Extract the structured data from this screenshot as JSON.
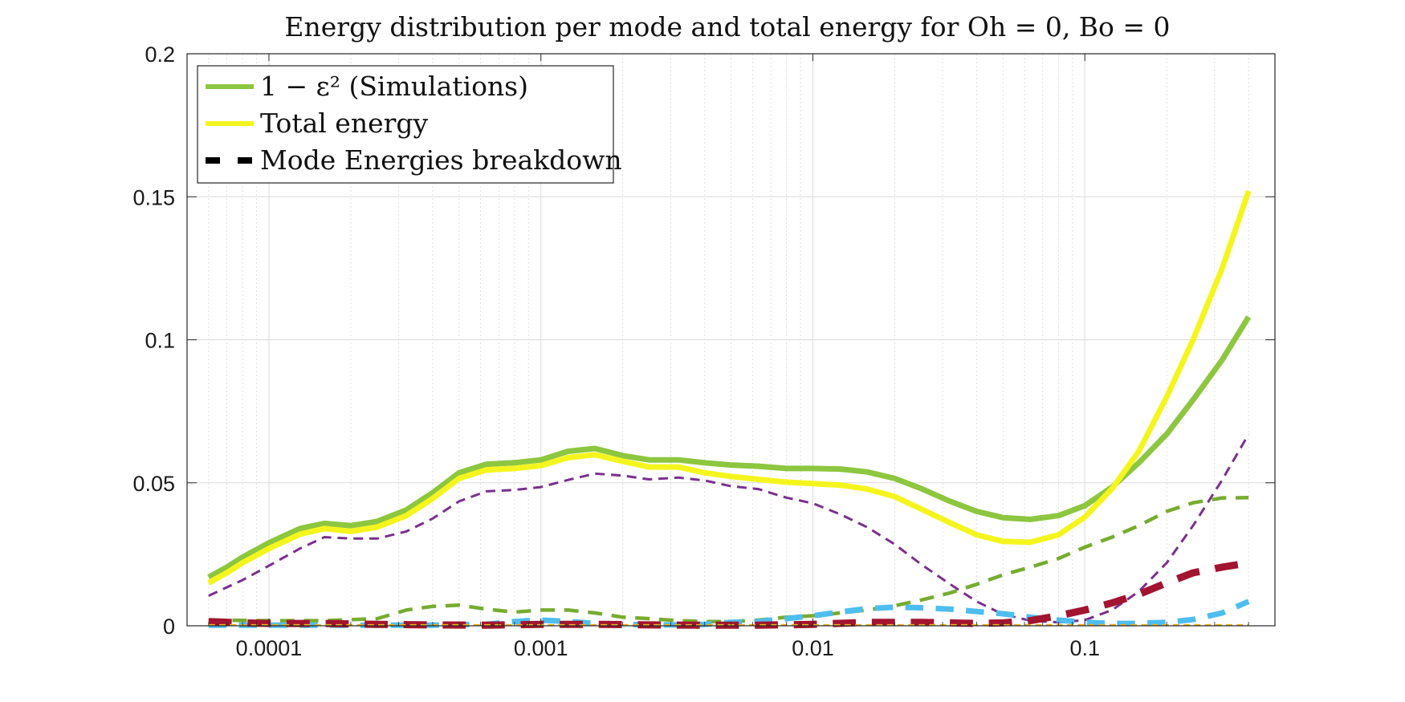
{
  "chart_data": {
    "type": "line",
    "title": "Energy distribution per mode and total energy for Oh = 0, Bo = 0",
    "xlabel": "",
    "ylabel": "",
    "x_scale": "log",
    "xlim": [
      5e-05,
      0.5
    ],
    "ylim": [
      0,
      0.2
    ],
    "grid": true,
    "legend_position": "top-left",
    "x_ticks": [
      0.0001,
      0.001,
      0.01,
      0.1
    ],
    "x_tick_labels": [
      "0.0001",
      "0.001",
      "0.01",
      "0.1"
    ],
    "y_ticks": [
      0,
      0.05,
      0.1,
      0.15,
      0.2
    ],
    "y_tick_labels": [
      "0",
      "0.05",
      "0.1",
      "0.15",
      "0.2"
    ],
    "legend": [
      {
        "label": "1 − ε² (Simulations)",
        "color": "#8dc63f",
        "style": "solid"
      },
      {
        "label": "Total energy",
        "color": "#f5f51e",
        "style": "solid"
      },
      {
        "label": "Mode Energies breakdown",
        "color": "#000000",
        "style": "dashed"
      }
    ],
    "series": [
      {
        "name": "1 − ε² (Simulations)",
        "color": "#8dc63f",
        "style": "solid",
        "width": 7,
        "points": [
          [
            6e-05,
            0.017
          ],
          [
            7e-05,
            0.0205
          ],
          [
            8e-05,
            0.024
          ],
          [
            0.0001,
            0.029
          ],
          [
            0.00013,
            0.034
          ],
          [
            0.00016,
            0.0358
          ],
          [
            0.0002,
            0.035
          ],
          [
            0.00025,
            0.0365
          ],
          [
            0.00032,
            0.0405
          ],
          [
            0.0004,
            0.0465
          ],
          [
            0.0005,
            0.0535
          ],
          [
            0.00063,
            0.0565
          ],
          [
            0.0008,
            0.057
          ],
          [
            0.001,
            0.058
          ],
          [
            0.00126,
            0.061
          ],
          [
            0.00158,
            0.062
          ],
          [
            0.002,
            0.0595
          ],
          [
            0.0025,
            0.058
          ],
          [
            0.0032,
            0.058
          ],
          [
            0.004,
            0.057
          ],
          [
            0.005,
            0.0562
          ],
          [
            0.0063,
            0.0558
          ],
          [
            0.008,
            0.055
          ],
          [
            0.01,
            0.055
          ],
          [
            0.0126,
            0.0548
          ],
          [
            0.0158,
            0.0538
          ],
          [
            0.02,
            0.0515
          ],
          [
            0.025,
            0.048
          ],
          [
            0.032,
            0.0435
          ],
          [
            0.04,
            0.04
          ],
          [
            0.05,
            0.0378
          ],
          [
            0.063,
            0.0372
          ],
          [
            0.08,
            0.0385
          ],
          [
            0.1,
            0.042
          ],
          [
            0.126,
            0.0485
          ],
          [
            0.158,
            0.057
          ],
          [
            0.2,
            0.067
          ],
          [
            0.25,
            0.079
          ],
          [
            0.32,
            0.093
          ],
          [
            0.4,
            0.108
          ]
        ]
      },
      {
        "name": "Total energy",
        "color": "#f5f51e",
        "style": "solid",
        "width": 7,
        "points": [
          [
            6e-05,
            0.015
          ],
          [
            7e-05,
            0.0185
          ],
          [
            8e-05,
            0.022
          ],
          [
            0.0001,
            0.027
          ],
          [
            0.00013,
            0.032
          ],
          [
            0.00016,
            0.034
          ],
          [
            0.0002,
            0.033
          ],
          [
            0.00025,
            0.0345
          ],
          [
            0.00032,
            0.0385
          ],
          [
            0.0004,
            0.0445
          ],
          [
            0.0005,
            0.0515
          ],
          [
            0.00063,
            0.0545
          ],
          [
            0.0008,
            0.055
          ],
          [
            0.001,
            0.056
          ],
          [
            0.00126,
            0.0588
          ],
          [
            0.00158,
            0.0598
          ],
          [
            0.002,
            0.0575
          ],
          [
            0.0025,
            0.0555
          ],
          [
            0.0032,
            0.0555
          ],
          [
            0.004,
            0.0535
          ],
          [
            0.005,
            0.0522
          ],
          [
            0.0063,
            0.0512
          ],
          [
            0.008,
            0.0502
          ],
          [
            0.01,
            0.0497
          ],
          [
            0.0126,
            0.0492
          ],
          [
            0.0158,
            0.0478
          ],
          [
            0.02,
            0.0452
          ],
          [
            0.025,
            0.0408
          ],
          [
            0.032,
            0.036
          ],
          [
            0.04,
            0.0318
          ],
          [
            0.05,
            0.0295
          ],
          [
            0.063,
            0.0292
          ],
          [
            0.08,
            0.0318
          ],
          [
            0.1,
            0.038
          ],
          [
            0.126,
            0.048
          ],
          [
            0.158,
            0.061
          ],
          [
            0.2,
            0.08
          ],
          [
            0.25,
            0.1
          ],
          [
            0.32,
            0.125
          ],
          [
            0.4,
            0.152
          ]
        ]
      },
      {
        "name": "",
        "color": "#7b2f8e",
        "style": "dashed",
        "width": 3,
        "points": [
          [
            6e-05,
            0.0105
          ],
          [
            8e-05,
            0.016
          ],
          [
            0.0001,
            0.021
          ],
          [
            0.00013,
            0.027
          ],
          [
            0.00016,
            0.031
          ],
          [
            0.0002,
            0.0305
          ],
          [
            0.00025,
            0.0305
          ],
          [
            0.00032,
            0.033
          ],
          [
            0.0004,
            0.0375
          ],
          [
            0.0005,
            0.0435
          ],
          [
            0.00063,
            0.047
          ],
          [
            0.0008,
            0.0475
          ],
          [
            0.001,
            0.0485
          ],
          [
            0.00126,
            0.051
          ],
          [
            0.00158,
            0.0532
          ],
          [
            0.002,
            0.0525
          ],
          [
            0.0025,
            0.0512
          ],
          [
            0.0032,
            0.0518
          ],
          [
            0.004,
            0.0508
          ],
          [
            0.005,
            0.0488
          ],
          [
            0.0063,
            0.0478
          ],
          [
            0.008,
            0.0448
          ],
          [
            0.01,
            0.0428
          ],
          [
            0.0126,
            0.039
          ],
          [
            0.0158,
            0.0345
          ],
          [
            0.02,
            0.0285
          ],
          [
            0.025,
            0.0215
          ],
          [
            0.032,
            0.0145
          ],
          [
            0.04,
            0.0085
          ],
          [
            0.05,
            0.004
          ],
          [
            0.063,
            0.0018
          ],
          [
            0.08,
            0.0012
          ],
          [
            0.1,
            0.002
          ],
          [
            0.126,
            0.0055
          ],
          [
            0.158,
            0.012
          ],
          [
            0.2,
            0.022
          ],
          [
            0.25,
            0.035
          ],
          [
            0.32,
            0.051
          ],
          [
            0.4,
            0.067
          ]
        ]
      },
      {
        "name": "",
        "color": "#77ac30",
        "style": "dashed",
        "width": 4.5,
        "points": [
          [
            6e-05,
            0.002
          ],
          [
            0.0001,
            0.0018
          ],
          [
            0.00016,
            0.0018
          ],
          [
            0.00025,
            0.0025
          ],
          [
            0.00032,
            0.0055
          ],
          [
            0.0004,
            0.0068
          ],
          [
            0.0005,
            0.0072
          ],
          [
            0.00063,
            0.0058
          ],
          [
            0.0008,
            0.0048
          ],
          [
            0.001,
            0.0055
          ],
          [
            0.00126,
            0.0055
          ],
          [
            0.00158,
            0.0045
          ],
          [
            0.002,
            0.003
          ],
          [
            0.0025,
            0.0025
          ],
          [
            0.0032,
            0.0018
          ],
          [
            0.004,
            0.0015
          ],
          [
            0.005,
            0.0015
          ],
          [
            0.0063,
            0.002
          ],
          [
            0.008,
            0.003
          ],
          [
            0.01,
            0.0035
          ],
          [
            0.0126,
            0.0045
          ],
          [
            0.0158,
            0.0055
          ],
          [
            0.02,
            0.007
          ],
          [
            0.025,
            0.009
          ],
          [
            0.032,
            0.0115
          ],
          [
            0.04,
            0.0145
          ],
          [
            0.05,
            0.0178
          ],
          [
            0.063,
            0.0205
          ],
          [
            0.08,
            0.0235
          ],
          [
            0.1,
            0.0275
          ],
          [
            0.126,
            0.031
          ],
          [
            0.158,
            0.035
          ],
          [
            0.2,
            0.04
          ],
          [
            0.25,
            0.043
          ],
          [
            0.32,
            0.0447
          ],
          [
            0.4,
            0.0448
          ]
        ]
      },
      {
        "name": "",
        "color": "#4dbeee",
        "style": "dashed",
        "width": 7,
        "points": [
          [
            6e-05,
            0.0002
          ],
          [
            0.0001,
            0.0002
          ],
          [
            0.00016,
            0.0002
          ],
          [
            0.00025,
            0.0002
          ],
          [
            0.0004,
            0.0002
          ],
          [
            0.00063,
            0.0005
          ],
          [
            0.0008,
            0.0015
          ],
          [
            0.001,
            0.002
          ],
          [
            0.00126,
            0.0015
          ],
          [
            0.00158,
            0.0008
          ],
          [
            0.002,
            0.0005
          ],
          [
            0.0025,
            0.0003
          ],
          [
            0.0032,
            0.0003
          ],
          [
            0.004,
            0.0005
          ],
          [
            0.005,
            0.0012
          ],
          [
            0.0063,
            0.0015
          ],
          [
            0.008,
            0.0025
          ],
          [
            0.01,
            0.0035
          ],
          [
            0.0126,
            0.0048
          ],
          [
            0.0158,
            0.006
          ],
          [
            0.02,
            0.0065
          ],
          [
            0.025,
            0.0063
          ],
          [
            0.032,
            0.0058
          ],
          [
            0.04,
            0.005
          ],
          [
            0.05,
            0.0042
          ],
          [
            0.063,
            0.003
          ],
          [
            0.08,
            0.002
          ],
          [
            0.1,
            0.0012
          ],
          [
            0.126,
            0.0008
          ],
          [
            0.158,
            0.0008
          ],
          [
            0.2,
            0.0012
          ],
          [
            0.25,
            0.0022
          ],
          [
            0.32,
            0.0045
          ],
          [
            0.4,
            0.0085
          ]
        ]
      },
      {
        "name": "",
        "color": "#a2142f",
        "style": "dashed",
        "width": 9,
        "points": [
          [
            6e-05,
            0.0015
          ],
          [
            8e-05,
            0.001
          ],
          [
            0.0001,
            0.0008
          ],
          [
            0.00016,
            0.0008
          ],
          [
            0.00025,
            0.0005
          ],
          [
            0.0004,
            0.0003
          ],
          [
            0.00063,
            0.0002
          ],
          [
            0.001,
            0.0005
          ],
          [
            0.00158,
            0.0005
          ],
          [
            0.0025,
            0.0003
          ],
          [
            0.004,
            0.0002
          ],
          [
            0.0063,
            0.0002
          ],
          [
            0.01,
            0.0005
          ],
          [
            0.0158,
            0.0012
          ],
          [
            0.025,
            0.0012
          ],
          [
            0.04,
            0.0008
          ],
          [
            0.05,
            0.001
          ],
          [
            0.063,
            0.0018
          ],
          [
            0.08,
            0.0035
          ],
          [
            0.1,
            0.0055
          ],
          [
            0.126,
            0.008
          ],
          [
            0.158,
            0.011
          ],
          [
            0.2,
            0.015
          ],
          [
            0.25,
            0.0185
          ],
          [
            0.32,
            0.0205
          ],
          [
            0.4,
            0.022
          ]
        ]
      },
      {
        "name": "",
        "color": "#edb120",
        "style": "dashed",
        "width": 2,
        "points": [
          [
            6e-05,
            0.0003
          ],
          [
            0.001,
            0.0003
          ],
          [
            0.01,
            0.0003
          ],
          [
            0.1,
            0.0003
          ],
          [
            0.4,
            0.0003
          ]
        ]
      }
    ]
  }
}
